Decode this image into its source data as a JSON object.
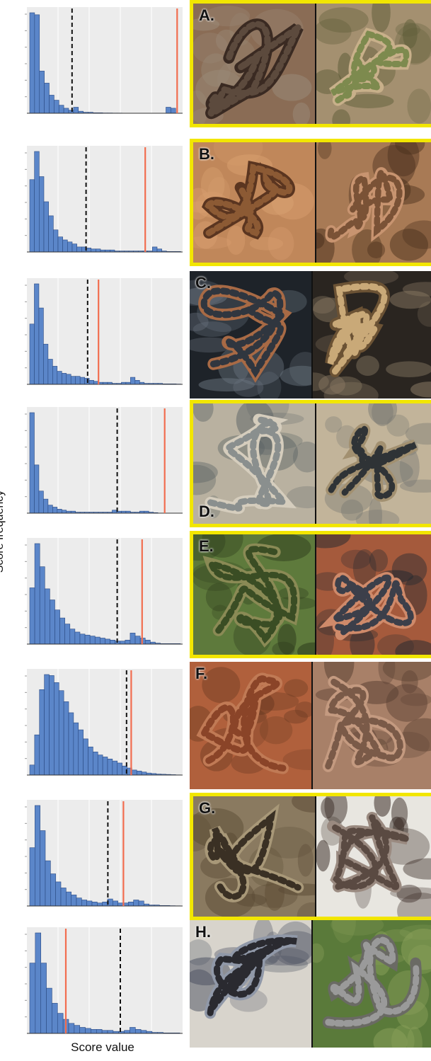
{
  "figure": {
    "ylabel": "Score frequency",
    "xlabel": "Score value"
  },
  "colors": {
    "bar_fill": "#5b86c9",
    "bar_stroke": "#2b4a82",
    "observed_line": "#f26d4f",
    "threshold_line": "#111111",
    "plot_bg": "#ececec",
    "highlight_border": "#f2e600"
  },
  "chart_data": [
    {
      "type": "bar",
      "panel": "A.",
      "highlighted": true,
      "values": [
        100,
        98,
        42,
        30,
        18,
        13,
        8,
        5,
        3,
        6,
        2,
        1,
        1,
        0.5,
        0.5,
        0.3,
        0.3,
        0.2,
        0.2,
        0.1,
        0.1,
        0,
        0,
        0,
        0,
        0,
        0,
        0,
        6,
        5,
        0
      ],
      "dashed_line": 0.29,
      "red_line": 0.965,
      "photo_tones": [
        [
          "#8a6c55",
          "#5c4a3d",
          "#3a2a22",
          "#9a8a78"
        ],
        [
          "#a49070",
          "#7d8a4e",
          "#c8b08a",
          "#5b5a36"
        ]
      ]
    },
    {
      "type": "bar",
      "panel": "B.",
      "highlighted": true,
      "values": [
        72,
        100,
        75,
        50,
        36,
        22,
        15,
        12,
        10,
        8,
        5,
        5,
        4,
        3,
        3,
        2,
        2,
        2,
        1,
        1,
        1,
        1,
        1,
        1,
        1,
        1,
        5,
        3,
        1,
        0.5,
        0.5,
        0.5
      ],
      "dashed_line": 0.38,
      "red_line": 0.76,
      "photo_tones": [
        [
          "#c0875a",
          "#8c5a34",
          "#5a3520",
          "#d9a070"
        ],
        [
          "#a87a55",
          "#7a5236",
          "#c89470",
          "#4a301c"
        ]
      ]
    },
    {
      "type": "bar",
      "panel": "C.",
      "highlighted": false,
      "values": [
        60,
        100,
        76,
        40,
        25,
        18,
        13,
        11,
        10,
        8,
        8,
        7,
        6,
        4,
        3,
        2,
        2,
        2,
        1,
        1,
        2,
        2,
        7,
        4,
        2,
        1,
        1,
        1,
        1,
        0.5,
        0.5,
        0.5,
        0.3
      ],
      "dashed_line": 0.39,
      "red_line": 0.46,
      "photo_tones": [
        [
          "#1e2329",
          "#30363f",
          "#a86a45",
          "#6b7580"
        ],
        [
          "#2a2520",
          "#c9a978",
          "#6b5234",
          "#8a7a64"
        ]
      ]
    },
    {
      "type": "bar",
      "panel": "D.",
      "highlighted": true,
      "values": [
        100,
        48,
        22,
        14,
        8,
        6,
        4,
        3,
        2,
        2,
        1,
        1,
        1,
        1,
        1,
        1,
        1,
        1,
        3,
        2,
        2,
        2,
        1,
        1,
        2,
        2,
        1,
        0.5,
        0,
        0,
        0,
        0,
        0
      ],
      "dashed_line": 0.58,
      "red_line": 0.885,
      "photo_tones": [
        [
          "#b9b1a0",
          "#8a8f8e",
          "#d5cdbd",
          "#5a6264"
        ],
        [
          "#c2b49a",
          "#2f3336",
          "#a29070",
          "#7a7a74"
        ]
      ]
    },
    {
      "type": "bar",
      "panel": "E.",
      "highlighted": true,
      "values": [
        56,
        100,
        77,
        55,
        44,
        34,
        26,
        20,
        15,
        12,
        10,
        9,
        8,
        7,
        6,
        5,
        4,
        3,
        3,
        4,
        11,
        8,
        6,
        4,
        2,
        1,
        0.5,
        0.5,
        0.5,
        0.5
      ],
      "dashed_line": 0.58,
      "red_line": 0.74,
      "photo_tones": [
        [
          "#5e7a3c",
          "#3a4d24",
          "#8a8a55",
          "#2c3a1c"
        ],
        [
          "#a55a3c",
          "#3c3f4a",
          "#cf8a6a",
          "#262a30"
        ]
      ]
    },
    {
      "type": "bar",
      "panel": "F.",
      "highlighted": false,
      "values": [
        10,
        40,
        85,
        100,
        99,
        92,
        84,
        73,
        62,
        52,
        45,
        36,
        28,
        23,
        20,
        18,
        16,
        14,
        12,
        9,
        7,
        5,
        4,
        3,
        2,
        1.5,
        1,
        0.8,
        0.6,
        0.4,
        0.2
      ],
      "dashed_line": 0.64,
      "red_line": 0.67,
      "photo_tones": [
        [
          "#b0603c",
          "#8a4428",
          "#c07a55",
          "#6a3a22"
        ],
        [
          "#a88068",
          "#7a5a48",
          "#c49a80",
          "#5a4032"
        ]
      ]
    },
    {
      "type": "bar",
      "panel": "G.",
      "highlighted": true,
      "values": [
        58,
        100,
        75,
        45,
        32,
        24,
        18,
        14,
        11,
        8,
        6,
        5,
        4,
        3,
        4,
        7,
        5,
        3,
        3,
        4,
        6,
        5,
        2,
        1,
        1,
        0.5,
        0.5,
        0.3,
        0.2
      ],
      "dashed_line": 0.52,
      "red_line": 0.62,
      "photo_tones": [
        [
          "#8a7a60",
          "#3a3024",
          "#a89878",
          "#5a4a34"
        ],
        [
          "#e8e6e0",
          "#5a4a42",
          "#9a8a80",
          "#3a2c26"
        ]
      ]
    },
    {
      "type": "bar",
      "panel": "H.",
      "highlighted": false,
      "values": [
        70,
        100,
        70,
        45,
        30,
        20,
        14,
        10,
        8,
        6,
        5,
        4,
        4,
        3,
        3,
        2,
        2,
        3,
        6,
        4,
        3,
        2,
        1,
        1,
        0.5,
        0.5,
        0.5
      ],
      "dashed_line": 0.6,
      "red_line": 0.25,
      "photo_tones": [
        [
          "#d8d4cc",
          "#2a2a30",
          "#9098a8",
          "#4a5060"
        ],
        [
          "#5a7a3a",
          "#9a9a9a",
          "#6a6a64",
          "#8aa05a"
        ]
      ]
    }
  ]
}
